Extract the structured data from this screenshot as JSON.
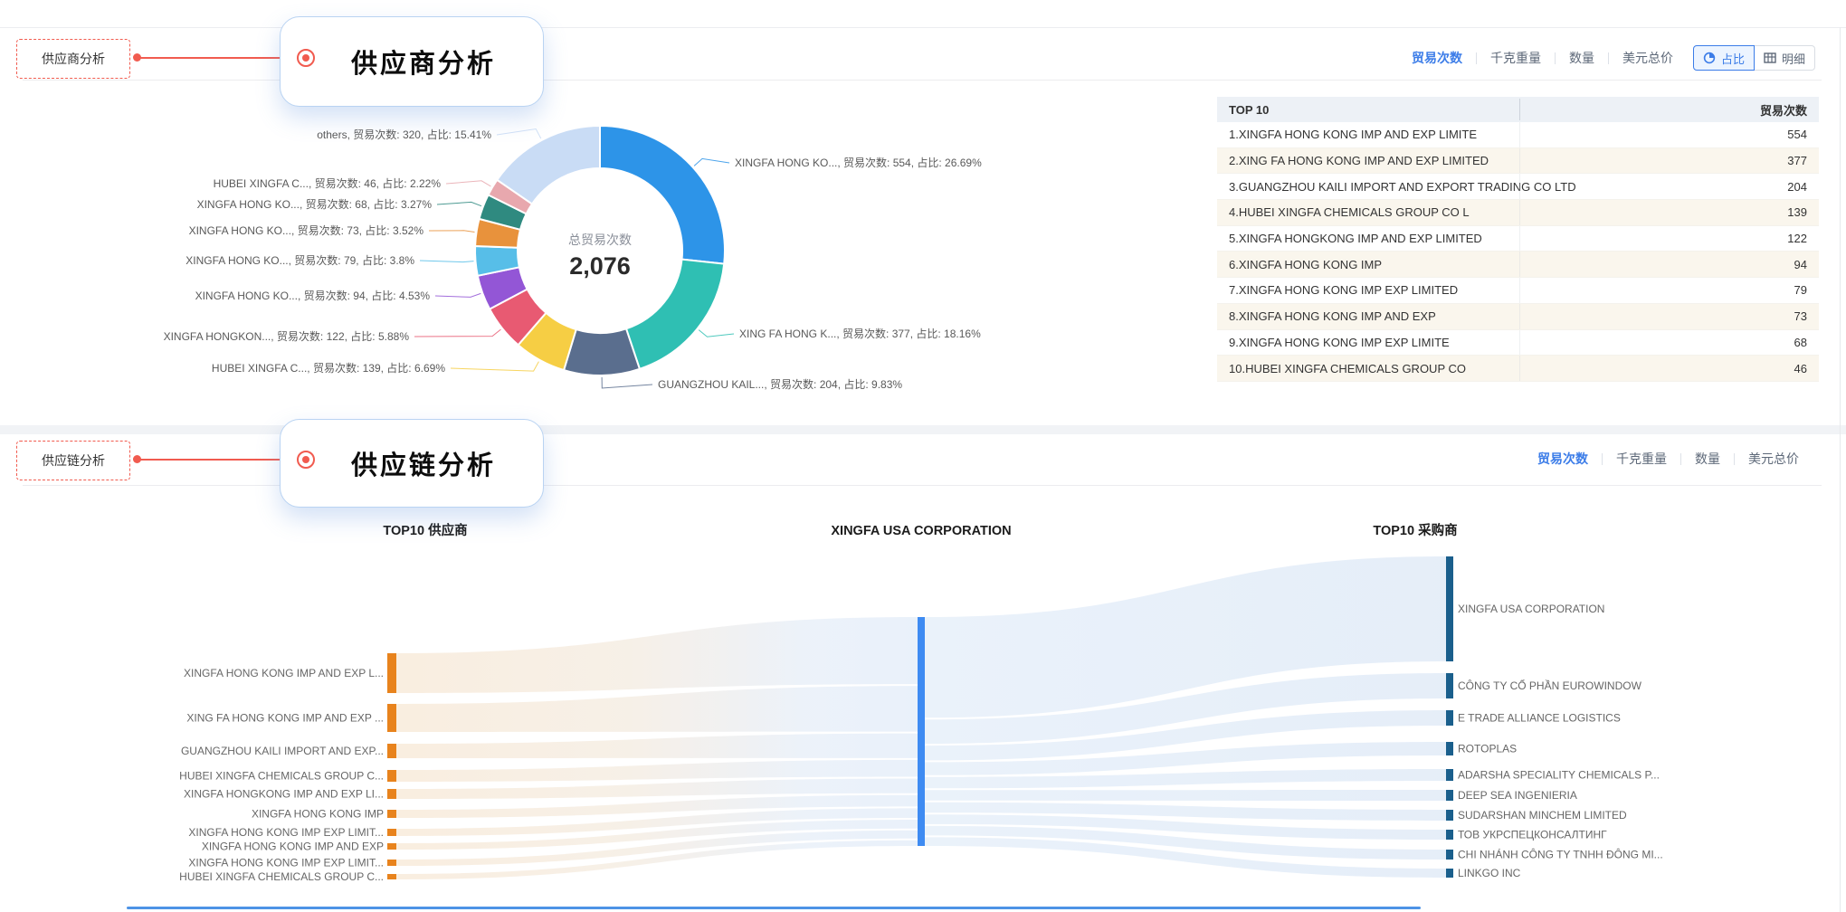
{
  "page": {
    "supplier_section": {
      "tag": "供应商分析",
      "callout": "供应商分析",
      "metric_tabs": [
        "贸易次数",
        "千克重量",
        "数量",
        "美元总价"
      ],
      "active_metric": "贸易次数",
      "view_modes": [
        {
          "label": "占比",
          "icon": "pie-icon",
          "active": true
        },
        {
          "label": "明细",
          "icon": "table-icon",
          "active": false
        }
      ],
      "top10_table": {
        "columns": [
          "TOP 10",
          "贸易次数"
        ],
        "rows": [
          {
            "name": "1.XINGFA HONG KONG IMP AND EXP LIMITE",
            "value": "554"
          },
          {
            "name": "2.XING FA HONG KONG IMP AND EXP LIMITED",
            "value": "377"
          },
          {
            "name": "3.GUANGZHOU KAILI IMPORT AND EXPORT TRADING CO LTD",
            "value": "204"
          },
          {
            "name": "4.HUBEI XINGFA CHEMICALS GROUP CO L",
            "value": "139"
          },
          {
            "name": "5.XINGFA HONGKONG IMP AND EXP LIMITED",
            "value": "122"
          },
          {
            "name": "6.XINGFA HONG KONG IMP",
            "value": "94"
          },
          {
            "name": "7.XINGFA HONG KONG IMP EXP LIMITED",
            "value": "79"
          },
          {
            "name": "8.XINGFA HONG KONG IMP AND EXP",
            "value": "73"
          },
          {
            "name": "9.XINGFA HONG KONG IMP EXP LIMITE",
            "value": "68"
          },
          {
            "name": "10.HUBEI XINGFA CHEMICALS GROUP CO",
            "value": "46"
          }
        ]
      }
    },
    "supply_chain_section": {
      "tag": "供应链分析",
      "callout": "供应链分析",
      "metric_tabs": [
        "贸易次数",
        "千克重量",
        "数量",
        "美元总价"
      ],
      "active_metric": "贸易次数"
    }
  },
  "colors": {
    "accent_blue": "#3B7CE8",
    "annotation_red": "#F15B4F",
    "supplier_node": "#E8831D",
    "company_node": "#3E8BF2",
    "buyer_node": "#1A5F8C"
  },
  "chart_data": [
    {
      "type": "pie",
      "subtype": "donut",
      "series_name": "贸易次数",
      "ratio_label": "占比",
      "center_label": "总贸易次数",
      "center_value": "2,076",
      "total": 2076,
      "slices": [
        {
          "name": "XINGFA HONG KO...",
          "value": 554,
          "pct": "26.69%",
          "color": "#2D94E8"
        },
        {
          "name": "XING FA HONG K...",
          "value": 377,
          "pct": "18.16%",
          "color": "#2FBFB3"
        },
        {
          "name": "GUANGZHOU KAIL...",
          "value": 204,
          "pct": "9.83%",
          "color": "#5A6E8E"
        },
        {
          "name": "HUBEI XINGFA C...",
          "value": 139,
          "pct": "6.69%",
          "color": "#F6CE44"
        },
        {
          "name": "XINGFA HONGKON...",
          "value": 122,
          "pct": "5.88%",
          "color": "#E85A72"
        },
        {
          "name": "XINGFA HONG KO...",
          "value": 94,
          "pct": "4.53%",
          "color": "#9356D6"
        },
        {
          "name": "XINGFA HONG KO...",
          "value": 79,
          "pct": "3.8%",
          "color": "#57BEE8"
        },
        {
          "name": "XINGFA HONG KO...",
          "value": 73,
          "pct": "3.52%",
          "color": "#E8923C"
        },
        {
          "name": "XINGFA HONG KO...",
          "value": 68,
          "pct": "3.27%",
          "color": "#2F8A80"
        },
        {
          "name": "HUBEI XINGFA C...",
          "value": 46,
          "pct": "2.22%",
          "color": "#E8A8AE"
        },
        {
          "name": "others",
          "value": 320,
          "pct": "15.41%",
          "color": "#C9DCF5"
        }
      ]
    },
    {
      "type": "sankey",
      "columns": [
        "TOP10 供应商",
        "XINGFA USA CORPORATION",
        "TOP10 采购商"
      ],
      "center_node": "XINGFA USA CORPORATION",
      "suppliers": [
        {
          "name": "XINGFA HONG KONG IMP AND EXP L...",
          "value": 554
        },
        {
          "name": "XING FA HONG KONG IMP AND EXP ...",
          "value": 377
        },
        {
          "name": "GUANGZHOU KAILI IMPORT AND EXP...",
          "value": 204
        },
        {
          "name": "HUBEI XINGFA CHEMICALS GROUP C...",
          "value": 139
        },
        {
          "name": "XINGFA HONGKONG IMP AND EXP LI...",
          "value": 122
        },
        {
          "name": "XINGFA HONG KONG IMP",
          "value": 94
        },
        {
          "name": "XINGFA HONG KONG IMP EXP LIMIT...",
          "value": 79
        },
        {
          "name": "XINGFA HONG KONG IMP AND EXP",
          "value": 73
        },
        {
          "name": "XINGFA HONG KONG IMP EXP LIMIT...",
          "value": 68
        },
        {
          "name": "HUBEI XINGFA CHEMICALS GROUP C...",
          "value": 46
        }
      ],
      "buyers": [
        {
          "name": "XINGFA USA CORPORATION",
          "weight": 116
        },
        {
          "name": "CÔNG TY CỔ PHẦN EUROWINDOW",
          "weight": 28
        },
        {
          "name": "E TRADE ALLIANCE LOGISTICS",
          "weight": 17
        },
        {
          "name": "ROTOPLAS",
          "weight": 15
        },
        {
          "name": "ADARSHA SPECIALITY CHEMICALS P...",
          "weight": 13
        },
        {
          "name": "DEEP SEA INGENIERIA",
          "weight": 12
        },
        {
          "name": "SUDARSHAN MINCHEM LIMITED",
          "weight": 12
        },
        {
          "name": "ТОВ УКРСПЕЦКОНСАЛТИНГ",
          "weight": 11
        },
        {
          "name": "CHI NHÁNH CÔNG TY TNHH ĐÔNG MI...",
          "weight": 11
        },
        {
          "name": "LINKGO INC",
          "weight": 10
        }
      ]
    }
  ]
}
